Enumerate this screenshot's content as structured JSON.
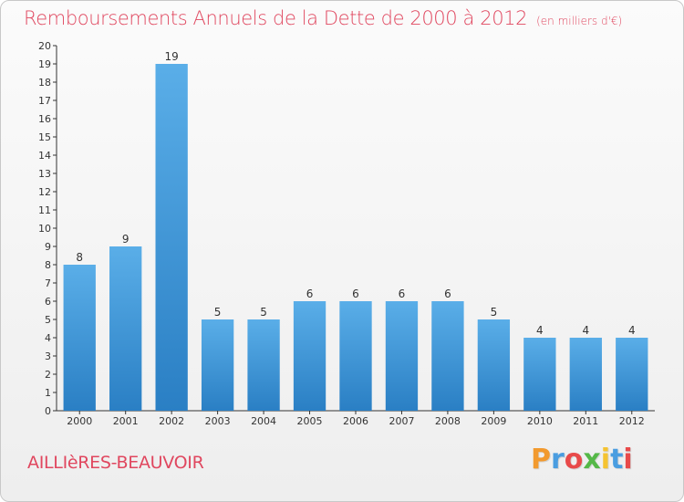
{
  "header": {
    "title": "Remboursements Annuels de la Dette de 2000 à 2012",
    "unit": "(en milliers d'€)"
  },
  "footer": {
    "commune": "AILLIèRES-BEAUVOIR",
    "logo_letters": [
      "P",
      "r",
      "o",
      "x",
      "i",
      "t",
      "i"
    ],
    "logo_colors": [
      "#f29a2e",
      "#4a9de0",
      "#e84a4a",
      "#55b848",
      "#f5c330",
      "#4a9de0",
      "#e84a4a"
    ]
  },
  "colors": {
    "bar_light": "#5aaee8",
    "bar_dark": "#2a7fc4",
    "axis": "#333333",
    "title": "#e0475f"
  },
  "chart_data": {
    "type": "bar",
    "categories": [
      "2000",
      "2001",
      "2002",
      "2003",
      "2004",
      "2005",
      "2006",
      "2007",
      "2008",
      "2009",
      "2010",
      "2011",
      "2012"
    ],
    "values": [
      8,
      9,
      19,
      5,
      5,
      6,
      6,
      6,
      6,
      5,
      4,
      4,
      4
    ],
    "ylim": [
      0,
      20
    ],
    "yticks": [
      0,
      1,
      2,
      3,
      4,
      5,
      6,
      7,
      8,
      9,
      10,
      11,
      12,
      13,
      14,
      15,
      16,
      17,
      18,
      19,
      20
    ],
    "grid": false,
    "legend": "none"
  }
}
